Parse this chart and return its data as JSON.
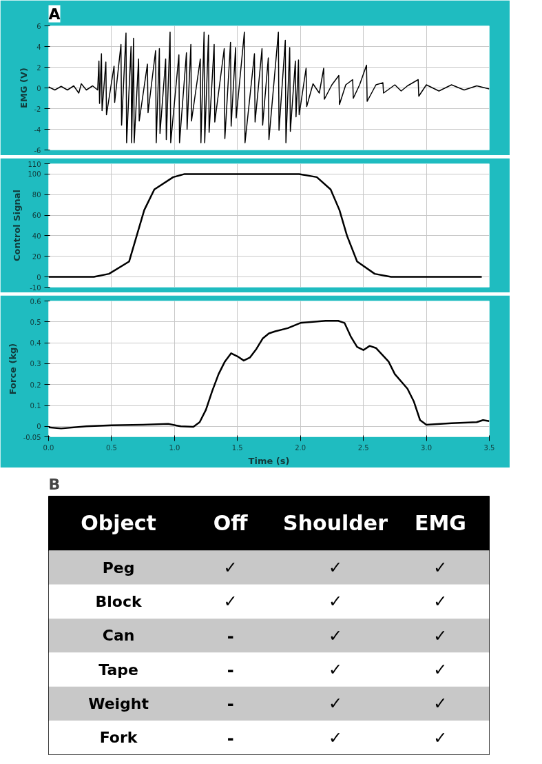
{
  "chart_data": [
    {
      "type": "line",
      "title": "A",
      "ylabel": "EMG (V)",
      "xlim": [
        0,
        3.5
      ],
      "xticks": [
        0,
        0.5,
        1,
        1.5,
        2,
        2.5,
        3,
        3.5
      ],
      "ylim": [
        -6,
        6
      ],
      "yticks": [
        -6,
        -4,
        -2,
        0,
        2,
        4,
        6
      ],
      "grid": true,
      "tick_labels": "y",
      "color": "#000000",
      "x": [
        0,
        0.05,
        0.1,
        0.15,
        0.2,
        0.24,
        0.26,
        0.3,
        0.35,
        0.39,
        0.4,
        0.405,
        0.42,
        0.425,
        0.455,
        0.46,
        0.52,
        0.525,
        0.575,
        0.58,
        0.615,
        0.62,
        0.655,
        0.66,
        0.675,
        0.68,
        0.715,
        0.72,
        0.785,
        0.79,
        0.85,
        0.855,
        0.88,
        0.885,
        0.93,
        0.935,
        0.965,
        0.97,
        1.035,
        1.04,
        1.095,
        1.1,
        1.13,
        1.135,
        1.205,
        1.21,
        1.235,
        1.24,
        1.27,
        1.275,
        1.315,
        1.32,
        1.395,
        1.4,
        1.445,
        1.45,
        1.485,
        1.49,
        1.555,
        1.56,
        1.635,
        1.64,
        1.695,
        1.7,
        1.745,
        1.75,
        1.825,
        1.83,
        1.88,
        1.885,
        1.915,
        1.92,
        1.96,
        1.965,
        1.985,
        1.99,
        2.045,
        2.05,
        2.1,
        2.15,
        2.185,
        2.19,
        2.25,
        2.305,
        2.31,
        2.36,
        2.415,
        2.42,
        2.47,
        2.525,
        2.53,
        2.6,
        2.655,
        2.66,
        2.75,
        2.8,
        2.85,
        2.935,
        2.94,
        3.0,
        3.1,
        3.2,
        3.3,
        3.4,
        3.5
      ],
      "values": [
        0.1,
        -0.2,
        0.15,
        -0.2,
        0.2,
        -0.5,
        0.4,
        -0.2,
        0.2,
        -0.2,
        2.6,
        -1.5,
        3.3,
        -2.2,
        2.5,
        -2.6,
        2.1,
        -1.4,
        4.2,
        -3.6,
        5.3,
        -5.3,
        4.0,
        -5.3,
        4.8,
        -5.3,
        2.8,
        -3.2,
        2.3,
        -2.4,
        3.6,
        -5.3,
        3.8,
        -4.4,
        2.8,
        -5.0,
        5.4,
        -5.3,
        3.2,
        -5.3,
        3.4,
        -4.0,
        4.2,
        -3.2,
        2.8,
        -5.3,
        5.4,
        -5.3,
        5.1,
        -4.3,
        4.2,
        -3.3,
        3.8,
        -4.9,
        4.4,
        -3.7,
        3.9,
        -2.9,
        5.4,
        -5.3,
        3.3,
        -3.3,
        3.8,
        -3.6,
        2.9,
        -5.0,
        5.4,
        -4.1,
        4.6,
        -5.3,
        3.9,
        -4.2,
        2.6,
        -2.8,
        2.7,
        -2.6,
        1.9,
        -1.8,
        0.4,
        -0.5,
        1.9,
        -1.1,
        0.3,
        1.2,
        -1.6,
        0.3,
        0.8,
        -1.0,
        0.3,
        2.2,
        -1.3,
        0.3,
        0.5,
        -0.5,
        0.3,
        -0.3,
        0.2,
        0.8,
        -0.8,
        0.3,
        -0.3,
        0.3,
        -0.2,
        0.2,
        -0.1
      ]
    },
    {
      "type": "line",
      "ylabel": "Control Signal",
      "xlim": [
        0,
        3.5
      ],
      "xticks": [
        0,
        0.5,
        1,
        1.5,
        2,
        2.5,
        3,
        3.5
      ],
      "ylim": [
        -10,
        110
      ],
      "yticks": [
        -10,
        0,
        20,
        40,
        60,
        80,
        100,
        110
      ],
      "grid": true,
      "tick_labels": "y",
      "color": "#000000",
      "x": [
        0,
        0.36,
        0.48,
        0.64,
        0.7,
        0.76,
        0.84,
        0.99,
        1.08,
        1.99,
        2.13,
        2.24,
        2.31,
        2.37,
        2.45,
        2.59,
        2.72,
        3.44
      ],
      "values": [
        0,
        0,
        3,
        15,
        40,
        65,
        85,
        97,
        100,
        100,
        97,
        85,
        65,
        40,
        15,
        3,
        0,
        0
      ]
    },
    {
      "type": "line",
      "xlabel": "Time (s)",
      "ylabel": "Force (kg)",
      "xlim": [
        0,
        3.5
      ],
      "xticks": [
        {
          "value": 0,
          "label": "0.0"
        },
        0.5,
        {
          "value": 1,
          "label": "1.0"
        },
        1.5,
        {
          "value": 2,
          "label": "2.0"
        },
        2.5,
        {
          "value": 3,
          "label": "3.0"
        },
        3.5
      ],
      "ylim": [
        -0.05,
        0.6
      ],
      "yticks": [
        -0.05,
        0,
        0.1,
        0.2,
        0.3,
        0.4,
        0.5,
        0.6
      ],
      "grid": true,
      "color": "#000000",
      "x": [
        0,
        0.1,
        0.3,
        0.5,
        0.75,
        0.95,
        1.05,
        1.15,
        1.2,
        1.25,
        1.3,
        1.35,
        1.4,
        1.45,
        1.5,
        1.55,
        1.6,
        1.65,
        1.7,
        1.75,
        1.8,
        1.9,
        2.0,
        2.1,
        2.2,
        2.3,
        2.35,
        2.4,
        2.45,
        2.5,
        2.55,
        2.6,
        2.7,
        2.75,
        2.85,
        2.9,
        2.95,
        3.0,
        3.2,
        3.4,
        3.45,
        3.5
      ],
      "values": [
        -0.005,
        -0.01,
        0,
        0.005,
        0.008,
        0.012,
        0,
        -0.002,
        0.02,
        0.08,
        0.17,
        0.25,
        0.31,
        0.35,
        0.335,
        0.315,
        0.33,
        0.37,
        0.42,
        0.445,
        0.455,
        0.47,
        0.495,
        0.5,
        0.505,
        0.505,
        0.495,
        0.43,
        0.38,
        0.365,
        0.385,
        0.375,
        0.31,
        0.25,
        0.18,
        0.12,
        0.03,
        0.008,
        0.015,
        0.02,
        0.03,
        0.025
      ]
    },
    {
      "type": "other",
      "title": "B",
      "categories": [
        "Object",
        "Off",
        "Shoulder",
        "EMG"
      ],
      "y_categories": [
        "Peg",
        "Block",
        "Can",
        "Tape",
        "Weight",
        "Fork"
      ],
      "cell_labels": [
        [
          "✓",
          "✓",
          "✓"
        ],
        [
          "✓",
          "✓",
          "✓"
        ],
        [
          "-",
          "✓",
          "✓"
        ],
        [
          "-",
          "✓",
          "✓"
        ],
        [
          "-",
          "✓",
          "✓"
        ],
        [
          "-",
          "✓",
          "✓"
        ]
      ]
    }
  ]
}
